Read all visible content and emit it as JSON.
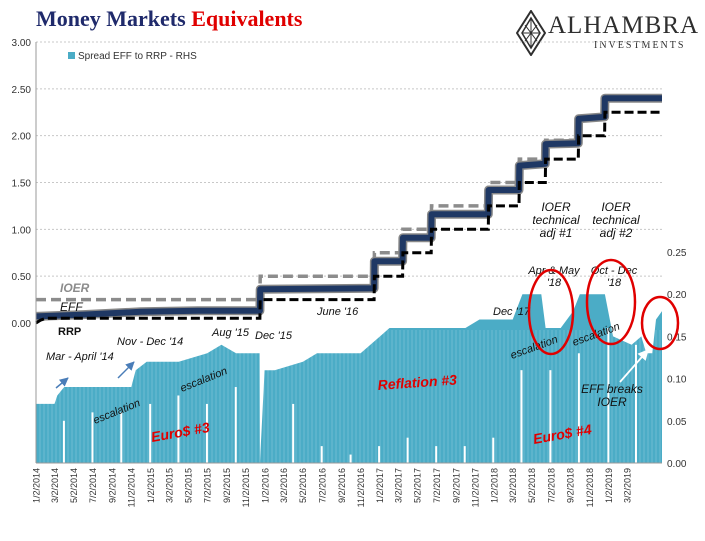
{
  "header": {
    "title_main": "Money Markets",
    "title_accent": "Equivalents",
    "logo_name": "ALHAMBRA",
    "logo_sub": "INVESTMENTS"
  },
  "colors": {
    "spread_fill": "#4bacc6",
    "eff_line": "#1f3864",
    "ioer_line": "#8c8c8c",
    "rrp_line": "#000000",
    "annotation_blue": "#1f3864",
    "annotation_red": "#e00000",
    "grid": "#c8c8c8"
  },
  "chart_data": {
    "type": "line",
    "legend": {
      "label": "Spread EFF to RRP - RHS",
      "position": "top-left"
    },
    "left_axis": {
      "ylim": [
        0,
        3
      ],
      "ticks": [
        "0.00",
        "0.50",
        "1.00",
        "1.50",
        "2.00",
        "2.50",
        "3.00"
      ]
    },
    "right_axis": {
      "ylim": [
        0,
        0.25
      ],
      "ticks": [
        "0.00",
        "0.05",
        "0.10",
        "0.15",
        "0.20",
        "0.25"
      ]
    },
    "x_ticks": [
      "1/2/2014",
      "3/2/2014",
      "5/2/2014",
      "7/2/2014",
      "9/2/2014",
      "11/2/2014",
      "1/2/2015",
      "3/2/2015",
      "5/2/2015",
      "7/2/2015",
      "9/2/2015",
      "11/2/2015",
      "1/2/2016",
      "3/2/2016",
      "5/2/2016",
      "7/2/2016",
      "9/2/2016",
      "11/2/2016",
      "1/2/2017",
      "3/2/2017",
      "5/2/2017",
      "7/2/2017",
      "9/2/2017",
      "11/2/2017",
      "1/2/2018",
      "3/2/2018",
      "5/2/2018",
      "7/2/2018",
      "9/2/2018",
      "11/2/2018",
      "1/2/2019",
      "3/2/2019"
    ],
    "x_range": [
      "2014-01-01",
      "2019-06-20"
    ],
    "grid": true,
    "series": [
      {
        "name": "EFF",
        "axis": "left",
        "points": [
          [
            "2014-01-01",
            0.07
          ],
          [
            "2014-06-01",
            0.09
          ],
          [
            "2014-12-01",
            0.12
          ],
          [
            "2015-06-01",
            0.13
          ],
          [
            "2015-12-16",
            0.13
          ],
          [
            "2015-12-17",
            0.36
          ],
          [
            "2016-12-14",
            0.37
          ],
          [
            "2016-12-15",
            0.66
          ],
          [
            "2017-03-15",
            0.66
          ],
          [
            "2017-03-16",
            0.91
          ],
          [
            "2017-06-14",
            0.91
          ],
          [
            "2017-06-15",
            1.16
          ],
          [
            "2017-12-13",
            1.16
          ],
          [
            "2017-12-14",
            1.42
          ],
          [
            "2018-03-21",
            1.42
          ],
          [
            "2018-03-22",
            1.68
          ],
          [
            "2018-06-13",
            1.7
          ],
          [
            "2018-06-14",
            1.91
          ],
          [
            "2018-09-26",
            1.92
          ],
          [
            "2018-09-27",
            2.18
          ],
          [
            "2018-12-19",
            2.2
          ],
          [
            "2018-12-20",
            2.4
          ],
          [
            "2019-06-20",
            2.4
          ]
        ]
      },
      {
        "name": "IOER",
        "axis": "left",
        "points": [
          [
            "2014-01-01",
            0.25
          ],
          [
            "2015-12-16",
            0.25
          ],
          [
            "2015-12-17",
            0.5
          ],
          [
            "2016-12-14",
            0.5
          ],
          [
            "2016-12-15",
            0.75
          ],
          [
            "2017-03-15",
            0.75
          ],
          [
            "2017-03-16",
            1.0
          ],
          [
            "2017-06-14",
            1.0
          ],
          [
            "2017-06-15",
            1.25
          ],
          [
            "2017-12-13",
            1.25
          ],
          [
            "2017-12-14",
            1.5
          ],
          [
            "2018-03-21",
            1.5
          ],
          [
            "2018-03-22",
            1.75
          ],
          [
            "2018-06-13",
            1.75
          ],
          [
            "2018-06-14",
            1.95
          ],
          [
            "2018-09-26",
            1.95
          ],
          [
            "2018-09-27",
            2.2
          ],
          [
            "2018-12-19",
            2.2
          ],
          [
            "2018-12-20",
            2.4
          ],
          [
            "2019-06-20",
            2.4
          ]
        ]
      },
      {
        "name": "RRP",
        "axis": "left",
        "points": [
          [
            "2014-01-01",
            0.0
          ],
          [
            "2014-01-15",
            0.03
          ],
          [
            "2014-02-01",
            0.05
          ],
          [
            "2015-12-16",
            0.05
          ],
          [
            "2015-12-17",
            0.25
          ],
          [
            "2016-12-14",
            0.25
          ],
          [
            "2016-12-15",
            0.5
          ],
          [
            "2017-03-15",
            0.5
          ],
          [
            "2017-03-16",
            0.75
          ],
          [
            "2017-06-14",
            0.75
          ],
          [
            "2017-06-15",
            1.0
          ],
          [
            "2017-12-13",
            1.0
          ],
          [
            "2017-12-14",
            1.25
          ],
          [
            "2018-03-21",
            1.25
          ],
          [
            "2018-03-22",
            1.5
          ],
          [
            "2018-06-13",
            1.5
          ],
          [
            "2018-06-14",
            1.75
          ],
          [
            "2018-09-26",
            1.75
          ],
          [
            "2018-09-27",
            2.0
          ],
          [
            "2018-12-19",
            2.0
          ],
          [
            "2018-12-20",
            2.25
          ],
          [
            "2019-06-20",
            2.25
          ]
        ]
      },
      {
        "name": "Spread EFF to RRP - RHS",
        "axis": "right",
        "points": [
          [
            "2014-01-01",
            0.07
          ],
          [
            "2014-03-01",
            0.07
          ],
          [
            "2014-03-10",
            0.08
          ],
          [
            "2014-04-01",
            0.09
          ],
          [
            "2014-05-15",
            0.09
          ],
          [
            "2014-06-01",
            0.09
          ],
          [
            "2014-09-01",
            0.09
          ],
          [
            "2014-11-01",
            0.09
          ],
          [
            "2014-11-15",
            0.11
          ],
          [
            "2014-12-20",
            0.12
          ],
          [
            "2015-04-01",
            0.12
          ],
          [
            "2015-07-01",
            0.13
          ],
          [
            "2015-08-15",
            0.14
          ],
          [
            "2015-10-01",
            0.13
          ],
          [
            "2015-12-15",
            0.13
          ],
          [
            "2015-12-16",
            0.0
          ],
          [
            "2015-12-31",
            0.11
          ],
          [
            "2016-02-01",
            0.11
          ],
          [
            "2016-05-01",
            0.12
          ],
          [
            "2016-06-15",
            0.13
          ],
          [
            "2016-08-01",
            0.13
          ],
          [
            "2016-11-01",
            0.13
          ],
          [
            "2017-02-01",
            0.16
          ],
          [
            "2017-06-01",
            0.16
          ],
          [
            "2017-10-01",
            0.16
          ],
          [
            "2017-11-15",
            0.17
          ],
          [
            "2017-12-20",
            0.17
          ],
          [
            "2018-01-15",
            0.17
          ],
          [
            "2018-03-01",
            0.17
          ],
          [
            "2018-04-01",
            0.2
          ],
          [
            "2018-05-31",
            0.2
          ],
          [
            "2018-06-14",
            0.16
          ],
          [
            "2018-08-01",
            0.16
          ],
          [
            "2018-09-10",
            0.18
          ],
          [
            "2018-10-01",
            0.2
          ],
          [
            "2018-12-20",
            0.2
          ],
          [
            "2019-01-15",
            0.15
          ],
          [
            "2019-03-15",
            0.14
          ],
          [
            "2019-04-15",
            0.15
          ],
          [
            "2019-05-01",
            0.13
          ],
          [
            "2019-05-20",
            0.13
          ],
          [
            "2019-06-01",
            0.17
          ],
          [
            "2019-06-20",
            0.18
          ]
        ],
        "dips": [
          [
            "2014-03-31",
            0.05
          ],
          [
            "2014-06-30",
            0.06
          ],
          [
            "2014-09-30",
            0.06
          ],
          [
            "2014-12-31",
            0.07
          ],
          [
            "2015-03-31",
            0.08
          ],
          [
            "2015-06-30",
            0.07
          ],
          [
            "2015-09-30",
            0.09
          ],
          [
            "2016-03-31",
            0.07
          ],
          [
            "2016-06-30",
            0.02
          ],
          [
            "2016-09-30",
            0.01
          ],
          [
            "2016-12-30",
            0.02
          ],
          [
            "2017-03-31",
            0.03
          ],
          [
            "2017-06-30",
            0.02
          ],
          [
            "2017-09-29",
            0.02
          ],
          [
            "2017-12-29",
            0.03
          ],
          [
            "2018-03-29",
            0.11
          ],
          [
            "2018-06-29",
            0.11
          ],
          [
            "2018-09-28",
            0.13
          ],
          [
            "2018-12-31",
            0.16
          ],
          [
            "2019-03-29",
            0.14
          ]
        ]
      }
    ],
    "annotations": [
      {
        "id": "ioer-label",
        "text": "IOER",
        "color": "gray"
      },
      {
        "id": "eff-label",
        "text": "EFF",
        "color": "black"
      },
      {
        "id": "rrp-label",
        "text": "RRP",
        "color": "black"
      },
      {
        "id": "mar-apr-14",
        "text": "Mar - April '14",
        "color": "black"
      },
      {
        "id": "nov-dec-14",
        "text": "Nov - Dec '14",
        "color": "black"
      },
      {
        "id": "aug-15",
        "text": "Aug '15",
        "color": "black"
      },
      {
        "id": "dec-15",
        "text": "Dec '15",
        "color": "black"
      },
      {
        "id": "june-16",
        "text": "June '16",
        "color": "black"
      },
      {
        "id": "dec-17",
        "text": "Dec '17",
        "color": "black"
      },
      {
        "id": "apr-may-18",
        "text": "Apr & May '18",
        "color": "black"
      },
      {
        "id": "oct-dec-18",
        "text": "Oct - Dec '18",
        "color": "black"
      },
      {
        "id": "ioer-tech-1",
        "text": "IOER technical adj #1",
        "color": "black"
      },
      {
        "id": "ioer-tech-2",
        "text": "IOER technical adj #2",
        "color": "black"
      },
      {
        "id": "escalation-1",
        "text": "escalation",
        "color": "black"
      },
      {
        "id": "escalation-2",
        "text": "escalation",
        "color": "black"
      },
      {
        "id": "escalation-3",
        "text": "escalation",
        "color": "black"
      },
      {
        "id": "escalation-4",
        "text": "escalation",
        "color": "black"
      },
      {
        "id": "reflation-3",
        "text": "Reflation #3",
        "color": "red"
      },
      {
        "id": "euro-3",
        "text": "Euro$ #3",
        "color": "red"
      },
      {
        "id": "euro-4",
        "text": "Euro$ #4",
        "color": "red"
      },
      {
        "id": "eff-breaks",
        "text": "EFF breaks IOER",
        "color": "black"
      }
    ]
  }
}
